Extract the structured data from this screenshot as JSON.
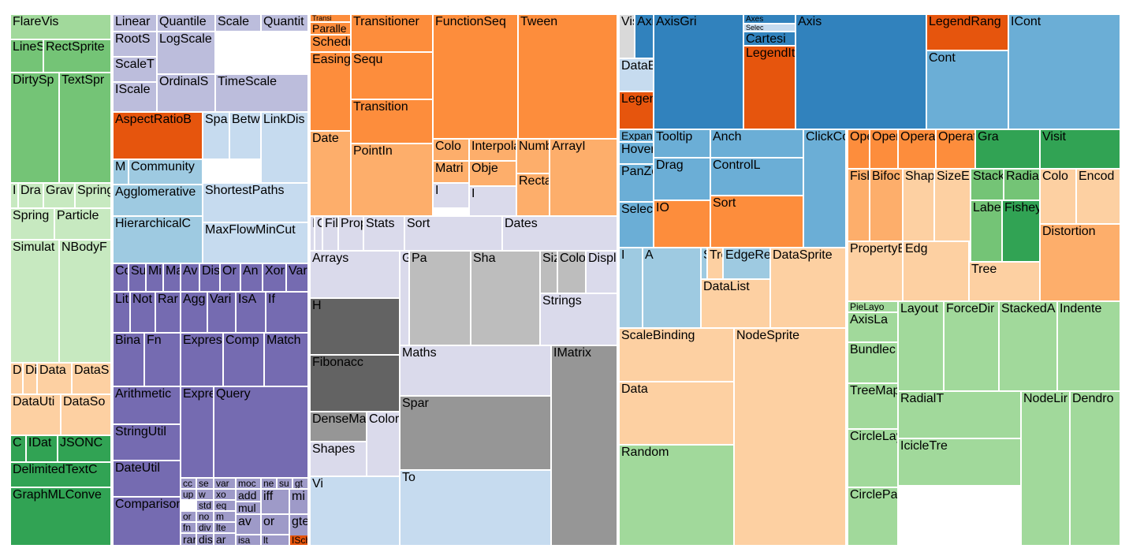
{
  "chart_data": {
    "type": "treemap",
    "title": "",
    "colors": {
      "dg": "#31a354",
      "mg": "#74c476",
      "lg": "#a1d99b",
      "pg": "#c7e9c0",
      "p3": "#756bb1",
      "p2": "#9e9ac8",
      "p1": "#bcbddc",
      "p0": "#dadaeb",
      "dor": "#e6550d",
      "or": "#fd8d3c",
      "lor": "#fdae6b",
      "por": "#fdd0a2",
      "db": "#3182bd",
      "mb": "#6baed6",
      "lb": "#9ecae1",
      "pb": "#c6dbef",
      "gy3": "#636363",
      "gy2": "#969696",
      "gy1": "#bdbdbd",
      "gy0": "#d9d9d9"
    },
    "cells": [
      {
        "label": "FlareVis",
        "color": "lg"
      },
      {
        "label": "LineS",
        "color": "mg"
      },
      {
        "label": "RectSprite",
        "color": "mg"
      },
      {
        "label": "DirtySp",
        "color": "mg"
      },
      {
        "label": "TextSpr",
        "color": "mg"
      },
      {
        "label": "I",
        "color": "pg"
      },
      {
        "label": "Dra",
        "color": "pg"
      },
      {
        "label": "Grav",
        "color": "pg"
      },
      {
        "label": "Spring",
        "color": "pg"
      },
      {
        "label": "Spring",
        "color": "pg"
      },
      {
        "label": "Particle",
        "color": "pg"
      },
      {
        "label": "Simulat",
        "color": "pg"
      },
      {
        "label": "NBodyF",
        "color": "pg"
      },
      {
        "label": "D",
        "color": "por"
      },
      {
        "label": "Di",
        "color": "por"
      },
      {
        "label": "Data",
        "color": "por"
      },
      {
        "label": "DataS",
        "color": "por"
      },
      {
        "label": "DataUti",
        "color": "por"
      },
      {
        "label": "DataSo",
        "color": "por"
      },
      {
        "label": "C",
        "color": "dg"
      },
      {
        "label": "IDat",
        "color": "dg"
      },
      {
        "label": "JSONC",
        "color": "dg"
      },
      {
        "label": "DelimitedTextC",
        "color": "dg"
      },
      {
        "label": "GraphMLConve",
        "color": "dg"
      },
      {
        "label": "Linear",
        "color": "p1"
      },
      {
        "label": "Quantile",
        "color": "p1"
      },
      {
        "label": "Scale",
        "color": "p1"
      },
      {
        "label": "Quantit",
        "color": "p1"
      },
      {
        "label": "RootS",
        "color": "p1"
      },
      {
        "label": "ScaleT",
        "color": "p1"
      },
      {
        "label": "LogScale",
        "color": "p1"
      },
      {
        "label": "IScale",
        "color": "p1"
      },
      {
        "label": "OrdinalS",
        "color": "p1"
      },
      {
        "label": "TimeScale",
        "color": "p1"
      },
      {
        "label": "AspectRatioB",
        "color": "dor"
      },
      {
        "label": "Spa",
        "color": "pb"
      },
      {
        "label": "Betw",
        "color": "pb"
      },
      {
        "label": "LinkDis",
        "color": "pb"
      },
      {
        "label": "M",
        "color": "lb"
      },
      {
        "label": "Community",
        "color": "lb"
      },
      {
        "label": "Agglomerative",
        "color": "lb"
      },
      {
        "label": "ShortestPaths",
        "color": "pb"
      },
      {
        "label": "HierarchicalC",
        "color": "lb"
      },
      {
        "label": "MaxFlowMinCut",
        "color": "pb"
      },
      {
        "label": "Co",
        "color": "p3"
      },
      {
        "label": "Su",
        "color": "p3"
      },
      {
        "label": "Mi",
        "color": "p3"
      },
      {
        "label": "Ma",
        "color": "p3"
      },
      {
        "label": "Av",
        "color": "p3"
      },
      {
        "label": "Dis",
        "color": "p3"
      },
      {
        "label": "Or",
        "color": "p3"
      },
      {
        "label": "An",
        "color": "p3"
      },
      {
        "label": "Xor",
        "color": "p3"
      },
      {
        "label": "Var",
        "color": "p3"
      },
      {
        "label": "Lit",
        "color": "p3"
      },
      {
        "label": "Not",
        "color": "p3"
      },
      {
        "label": "Rar",
        "color": "p3"
      },
      {
        "label": "Agg",
        "color": "p3"
      },
      {
        "label": "Vari",
        "color": "p3"
      },
      {
        "label": "IsA",
        "color": "p3"
      },
      {
        "label": "If",
        "color": "p3"
      },
      {
        "label": "Bina",
        "color": "p3"
      },
      {
        "label": "Fn",
        "color": "p3"
      },
      {
        "label": "Expres",
        "color": "p3"
      },
      {
        "label": "Comp",
        "color": "p3"
      },
      {
        "label": "Match",
        "color": "p3"
      },
      {
        "label": "Arithmetic",
        "color": "p3"
      },
      {
        "label": "Expre",
        "color": "p3"
      },
      {
        "label": "Query",
        "color": "p3"
      },
      {
        "label": "StringUtil",
        "color": "p3"
      },
      {
        "label": "DateUtil",
        "color": "p3"
      },
      {
        "label": "Comparison",
        "color": "p3"
      },
      {
        "label": "cc",
        "color": "p2"
      },
      {
        "label": "se",
        "color": "p2"
      },
      {
        "label": "var",
        "color": "p2"
      },
      {
        "label": "moc",
        "color": "p2"
      },
      {
        "label": "ne",
        "color": "p2"
      },
      {
        "label": "su",
        "color": "p2"
      },
      {
        "label": "gt",
        "color": "p2"
      },
      {
        "label": "w",
        "color": "p2"
      },
      {
        "label": "xo",
        "color": "p2"
      },
      {
        "label": "add",
        "color": "p2"
      },
      {
        "label": "up",
        "color": "p2"
      },
      {
        "label": "std",
        "color": "p2"
      },
      {
        "label": "eq",
        "color": "p2"
      },
      {
        "label": "mul",
        "color": "p2"
      },
      {
        "label": "iff",
        "color": "p2"
      },
      {
        "label": "mi",
        "color": "p2"
      },
      {
        "label": "or",
        "color": "p2"
      },
      {
        "label": "no",
        "color": "p2"
      },
      {
        "label": "m",
        "color": "p2"
      },
      {
        "label": "fn",
        "color": "p2"
      },
      {
        "label": "div",
        "color": "p2"
      },
      {
        "label": "lte",
        "color": "p2"
      },
      {
        "label": "av",
        "color": "p2"
      },
      {
        "label": "or",
        "color": "p2"
      },
      {
        "label": "rar",
        "color": "p2"
      },
      {
        "label": "dis",
        "color": "p2"
      },
      {
        "label": "ar",
        "color": "p2"
      },
      {
        "label": "isa",
        "color": "p2"
      },
      {
        "label": "lt",
        "color": "p2"
      },
      {
        "label": "gte",
        "color": "p2"
      },
      {
        "label": "Pause",
        "color": "or"
      },
      {
        "label": "ISche",
        "color": "dor"
      },
      {
        "label": "Transi",
        "color": "or"
      },
      {
        "label": "Paralle",
        "color": "or"
      },
      {
        "label": "Scheduler",
        "color": "or"
      },
      {
        "label": "Easing",
        "color": "or"
      },
      {
        "label": "Transitioner",
        "color": "or"
      },
      {
        "label": "FunctionSeq",
        "color": "or"
      },
      {
        "label": "Tween",
        "color": "or"
      },
      {
        "label": "Sequ",
        "color": "or"
      },
      {
        "label": "Transition",
        "color": "or"
      },
      {
        "label": "Date",
        "color": "lor"
      },
      {
        "label": "PointIn",
        "color": "lor"
      },
      {
        "label": "Colo",
        "color": "lor"
      },
      {
        "label": "Interpolato",
        "color": "lor"
      },
      {
        "label": "Numb",
        "color": "lor"
      },
      {
        "label": "ArrayI",
        "color": "lor"
      },
      {
        "label": "Matri",
        "color": "lor"
      },
      {
        "label": "Obje",
        "color": "lor"
      },
      {
        "label": "Rectan",
        "color": "lor"
      },
      {
        "label": "I",
        "color": "p0"
      },
      {
        "label": "I",
        "color": "p0"
      },
      {
        "label": "IV",
        "color": "p0"
      },
      {
        "label": "Orie",
        "color": "p0"
      },
      {
        "label": "Filter",
        "color": "p0"
      },
      {
        "label": "Property",
        "color": "p0"
      },
      {
        "label": "Stats",
        "color": "p0"
      },
      {
        "label": "Sort",
        "color": "p0"
      },
      {
        "label": "Dates",
        "color": "p0"
      },
      {
        "label": "Arrays",
        "color": "p0"
      },
      {
        "label": "H",
        "color": "gy3"
      },
      {
        "label": "Fibonacc",
        "color": "gy3"
      },
      {
        "label": "Geometry",
        "color": "p0"
      },
      {
        "label": "Pa",
        "color": "gy1"
      },
      {
        "label": "Sha",
        "color": "gy1"
      },
      {
        "label": "Size",
        "color": "gy1"
      },
      {
        "label": "ColorPalette",
        "color": "gy1"
      },
      {
        "label": "Displays",
        "color": "p0"
      },
      {
        "label": "Strings",
        "color": "p0"
      },
      {
        "label": "Maths",
        "color": "p0"
      },
      {
        "label": "IMatrix",
        "color": "gy2"
      },
      {
        "label": "Spar",
        "color": "gy2"
      },
      {
        "label": "DenseMa",
        "color": "gy2"
      },
      {
        "label": "Colors",
        "color": "p0"
      },
      {
        "label": "Shapes",
        "color": "p0"
      },
      {
        "label": "Vi",
        "color": "pb"
      },
      {
        "label": "To",
        "color": "pb"
      },
      {
        "label": "Visualization",
        "color": "gy0"
      },
      {
        "label": "AxisLa",
        "color": "db"
      },
      {
        "label": "AxisGri",
        "color": "db"
      },
      {
        "label": "Axes",
        "color": "db"
      },
      {
        "label": "Axis",
        "color": "db"
      },
      {
        "label": "Selec",
        "color": "pb"
      },
      {
        "label": "Cartesi",
        "color": "db"
      },
      {
        "label": "DataE",
        "color": "pb"
      },
      {
        "label": "LegendItem",
        "color": "dor"
      },
      {
        "label": "Legend",
        "color": "dor"
      },
      {
        "label": "LegendRang",
        "color": "dor"
      },
      {
        "label": "ICont",
        "color": "mb"
      },
      {
        "label": "Cont",
        "color": "mb"
      },
      {
        "label": "ExpandC",
        "color": "mb"
      },
      {
        "label": "HoverControl",
        "color": "mb"
      },
      {
        "label": "Tooltip",
        "color": "mb"
      },
      {
        "label": "Anch",
        "color": "mb"
      },
      {
        "label": "ClickCor",
        "color": "mb"
      },
      {
        "label": "PanZoomCont",
        "color": "mb"
      },
      {
        "label": "Drag",
        "color": "mb"
      },
      {
        "label": "ControlL",
        "color": "mb"
      },
      {
        "label": "SelectionCont",
        "color": "mb"
      },
      {
        "label": "IO",
        "color": "or"
      },
      {
        "label": "Sort",
        "color": "or"
      },
      {
        "label": "Opera",
        "color": "or"
      },
      {
        "label": "Opera",
        "color": "or"
      },
      {
        "label": "OperatorS",
        "color": "or"
      },
      {
        "label": "OperatorList",
        "color": "or"
      },
      {
        "label": "Gra",
        "color": "dg"
      },
      {
        "label": "Visit",
        "color": "dg"
      },
      {
        "label": "Fish",
        "color": "lor"
      },
      {
        "label": "Bifoc",
        "color": "lor"
      },
      {
        "label": "Shap",
        "color": "por"
      },
      {
        "label": "SizeE",
        "color": "por"
      },
      {
        "label": "Stack",
        "color": "mg"
      },
      {
        "label": "Radial",
        "color": "mg"
      },
      {
        "label": "Colo",
        "color": "por"
      },
      {
        "label": "Encod",
        "color": "por"
      },
      {
        "label": "Labeler",
        "color": "mg"
      },
      {
        "label": "FisheyeT",
        "color": "dg"
      },
      {
        "label": "Distortion",
        "color": "lor"
      },
      {
        "label": "PropertyEr",
        "color": "por"
      },
      {
        "label": "Edg",
        "color": "por"
      },
      {
        "label": "Tree",
        "color": "por"
      },
      {
        "label": "I",
        "color": "lb"
      },
      {
        "label": "A",
        "color": "lb"
      },
      {
        "label": "ShapeF",
        "color": "lb"
      },
      {
        "label": "TreeBuilder",
        "color": "por"
      },
      {
        "label": "EdgeRend",
        "color": "lb"
      },
      {
        "label": "DataSprite",
        "color": "por"
      },
      {
        "label": "DataList",
        "color": "por"
      },
      {
        "label": "ScaleBinding",
        "color": "por"
      },
      {
        "label": "NodeSprite",
        "color": "por"
      },
      {
        "label": "Data",
        "color": "por"
      },
      {
        "label": "Random",
        "color": "lg"
      },
      {
        "label": "PieLayo",
        "color": "lg"
      },
      {
        "label": "AxisLa",
        "color": "lg"
      },
      {
        "label": "Layout",
        "color": "lg"
      },
      {
        "label": "ForceDir",
        "color": "lg"
      },
      {
        "label": "StackedA",
        "color": "lg"
      },
      {
        "label": "Indente",
        "color": "lg"
      },
      {
        "label": "Bundlec",
        "color": "lg"
      },
      {
        "label": "TreeMapLayout",
        "color": "lg"
      },
      {
        "label": "RadialT",
        "color": "lg"
      },
      {
        "label": "NodeLir",
        "color": "lg"
      },
      {
        "label": "Dendro",
        "color": "lg"
      },
      {
        "label": "CircleLayout",
        "color": "lg"
      },
      {
        "label": "IcicleTre",
        "color": "lg"
      },
      {
        "label": "CirclePackingLayo",
        "color": "lg"
      }
    ]
  }
}
